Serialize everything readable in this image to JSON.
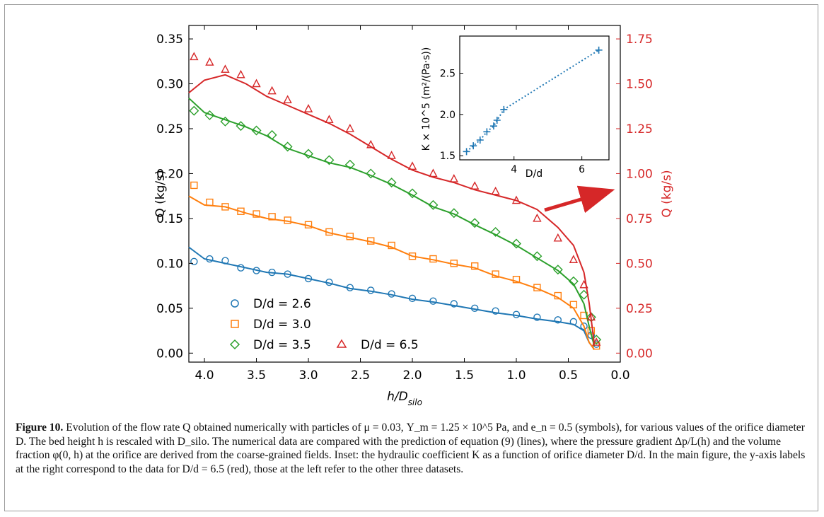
{
  "figure": {
    "caption_label": "Figure 10.",
    "caption_text": "Evolution of the flow rate Q obtained numerically with particles of μ = 0.03, Y_m = 1.25 × 10^5 Pa, and e_n = 0.5 (symbols), for various values of the orifice diameter D. The bed height h is rescaled with D_silo. The numerical data are compared with the prediction of equation (9) (lines), where the pressure gradient Δp/L(h) and the volume fraction φ(0, h) at the orifice are derived from the coarse-grained fields. Inset: the hydraulic coefficient K as a function of orifice diameter D/d. In the main figure, the y-axis labels at the right correspond to the data for D/d = 6.5 (red), those at the left refer to the other three datasets."
  },
  "colors": {
    "blue": "#1f77b4",
    "orange": "#ff7f0e",
    "green": "#2ca02c",
    "red": "#d62728"
  },
  "chart_data": [
    {
      "type": "line",
      "xlabel": "h/D_silo",
      "ylabel": "Q (kg/s)",
      "ylabel_right": "Q (kg/s)",
      "x_inverted": true,
      "xlim": [
        4.15,
        0.0
      ],
      "ylim": [
        -0.01,
        0.365
      ],
      "ylim_right": [
        -0.05,
        1.825
      ],
      "x_ticks": [
        "4.0",
        "3.5",
        "3.0",
        "2.5",
        "2.0",
        "1.5",
        "1.0",
        "0.5",
        "0.0"
      ],
      "y_ticks_left": [
        "0.00",
        "0.05",
        "0.10",
        "0.15",
        "0.20",
        "0.25",
        "0.30",
        "0.35"
      ],
      "y_ticks_right": [
        "0.00",
        "0.25",
        "0.50",
        "0.75",
        "1.00",
        "1.25",
        "1.50",
        "1.75"
      ],
      "legend_placement": "lower-left",
      "series": [
        {
          "name": "D/d = 2.6",
          "color": "#1f77b4",
          "marker": "circle",
          "axis": "left",
          "symbols": [
            [
              4.1,
              0.102
            ],
            [
              3.95,
              0.105
            ],
            [
              3.8,
              0.103
            ],
            [
              3.65,
              0.095
            ],
            [
              3.5,
              0.092
            ],
            [
              3.35,
              0.09
            ],
            [
              3.2,
              0.088
            ],
            [
              3.0,
              0.083
            ],
            [
              2.8,
              0.079
            ],
            [
              2.6,
              0.073
            ],
            [
              2.4,
              0.07
            ],
            [
              2.2,
              0.066
            ],
            [
              2.0,
              0.061
            ],
            [
              1.8,
              0.058
            ],
            [
              1.6,
              0.055
            ],
            [
              1.4,
              0.05
            ],
            [
              1.2,
              0.047
            ],
            [
              1.0,
              0.043
            ],
            [
              0.8,
              0.04
            ],
            [
              0.6,
              0.037
            ],
            [
              0.45,
              0.035
            ],
            [
              0.35,
              0.03
            ],
            [
              0.28,
              0.02
            ],
            [
              0.23,
              0.01
            ]
          ],
          "line": [
            [
              4.15,
              0.118
            ],
            [
              4.0,
              0.105
            ],
            [
              3.8,
              0.1
            ],
            [
              3.6,
              0.095
            ],
            [
              3.4,
              0.09
            ],
            [
              3.2,
              0.088
            ],
            [
              3.0,
              0.083
            ],
            [
              2.8,
              0.078
            ],
            [
              2.6,
              0.072
            ],
            [
              2.4,
              0.069
            ],
            [
              2.2,
              0.065
            ],
            [
              2.0,
              0.06
            ],
            [
              1.8,
              0.057
            ],
            [
              1.6,
              0.053
            ],
            [
              1.4,
              0.049
            ],
            [
              1.2,
              0.045
            ],
            [
              1.0,
              0.042
            ],
            [
              0.8,
              0.038
            ],
            [
              0.6,
              0.035
            ],
            [
              0.45,
              0.032
            ],
            [
              0.35,
              0.025
            ],
            [
              0.3,
              0.012
            ],
            [
              0.25,
              0.004
            ]
          ]
        },
        {
          "name": "D/d = 3.0",
          "color": "#ff7f0e",
          "marker": "square",
          "axis": "left",
          "symbols": [
            [
              4.1,
              0.187
            ],
            [
              3.95,
              0.168
            ],
            [
              3.8,
              0.163
            ],
            [
              3.65,
              0.158
            ],
            [
              3.5,
              0.155
            ],
            [
              3.35,
              0.152
            ],
            [
              3.2,
              0.148
            ],
            [
              3.0,
              0.143
            ],
            [
              2.8,
              0.135
            ],
            [
              2.6,
              0.13
            ],
            [
              2.4,
              0.125
            ],
            [
              2.2,
              0.12
            ],
            [
              2.0,
              0.108
            ],
            [
              1.8,
              0.105
            ],
            [
              1.6,
              0.1
            ],
            [
              1.4,
              0.097
            ],
            [
              1.2,
              0.088
            ],
            [
              1.0,
              0.082
            ],
            [
              0.8,
              0.073
            ],
            [
              0.6,
              0.064
            ],
            [
              0.45,
              0.054
            ],
            [
              0.35,
              0.042
            ],
            [
              0.28,
              0.025
            ],
            [
              0.23,
              0.008
            ]
          ],
          "line": [
            [
              4.15,
              0.175
            ],
            [
              4.0,
              0.165
            ],
            [
              3.8,
              0.163
            ],
            [
              3.6,
              0.156
            ],
            [
              3.4,
              0.15
            ],
            [
              3.2,
              0.147
            ],
            [
              3.0,
              0.142
            ],
            [
              2.8,
              0.134
            ],
            [
              2.6,
              0.129
            ],
            [
              2.4,
              0.124
            ],
            [
              2.2,
              0.118
            ],
            [
              2.0,
              0.108
            ],
            [
              1.8,
              0.104
            ],
            [
              1.6,
              0.099
            ],
            [
              1.4,
              0.095
            ],
            [
              1.2,
              0.086
            ],
            [
              1.0,
              0.08
            ],
            [
              0.8,
              0.072
            ],
            [
              0.6,
              0.062
            ],
            [
              0.45,
              0.05
            ],
            [
              0.35,
              0.03
            ],
            [
              0.3,
              0.012
            ],
            [
              0.25,
              0.004
            ]
          ]
        },
        {
          "name": "D/d = 3.5",
          "color": "#2ca02c",
          "marker": "diamond",
          "axis": "left",
          "symbols": [
            [
              4.1,
              0.27
            ],
            [
              3.95,
              0.265
            ],
            [
              3.8,
              0.258
            ],
            [
              3.65,
              0.253
            ],
            [
              3.5,
              0.248
            ],
            [
              3.35,
              0.243
            ],
            [
              3.2,
              0.23
            ],
            [
              3.0,
              0.222
            ],
            [
              2.8,
              0.215
            ],
            [
              2.6,
              0.21
            ],
            [
              2.4,
              0.2
            ],
            [
              2.2,
              0.19
            ],
            [
              2.0,
              0.178
            ],
            [
              1.8,
              0.165
            ],
            [
              1.6,
              0.156
            ],
            [
              1.4,
              0.145
            ],
            [
              1.2,
              0.135
            ],
            [
              1.0,
              0.122
            ],
            [
              0.8,
              0.108
            ],
            [
              0.6,
              0.093
            ],
            [
              0.45,
              0.08
            ],
            [
              0.35,
              0.065
            ],
            [
              0.28,
              0.04
            ],
            [
              0.23,
              0.015
            ]
          ],
          "line": [
            [
              4.15,
              0.284
            ],
            [
              4.0,
              0.268
            ],
            [
              3.8,
              0.26
            ],
            [
              3.6,
              0.252
            ],
            [
              3.4,
              0.242
            ],
            [
              3.2,
              0.228
            ],
            [
              3.0,
              0.22
            ],
            [
              2.8,
              0.212
            ],
            [
              2.6,
              0.207
            ],
            [
              2.4,
              0.198
            ],
            [
              2.2,
              0.188
            ],
            [
              2.0,
              0.176
            ],
            [
              1.8,
              0.163
            ],
            [
              1.6,
              0.155
            ],
            [
              1.4,
              0.143
            ],
            [
              1.2,
              0.132
            ],
            [
              1.0,
              0.12
            ],
            [
              0.8,
              0.106
            ],
            [
              0.6,
              0.092
            ],
            [
              0.45,
              0.077
            ],
            [
              0.35,
              0.055
            ],
            [
              0.3,
              0.03
            ],
            [
              0.25,
              0.008
            ]
          ]
        },
        {
          "name": "D/d = 6.5",
          "color": "#d62728",
          "marker": "triangle",
          "axis": "right",
          "symbols": [
            [
              4.1,
              1.65
            ],
            [
              3.95,
              1.62
            ],
            [
              3.8,
              1.58
            ],
            [
              3.65,
              1.55
            ],
            [
              3.5,
              1.5
            ],
            [
              3.35,
              1.46
            ],
            [
              3.2,
              1.41
            ],
            [
              3.0,
              1.36
            ],
            [
              2.8,
              1.3
            ],
            [
              2.6,
              1.25
            ],
            [
              2.4,
              1.16
            ],
            [
              2.2,
              1.1
            ],
            [
              2.0,
              1.04
            ],
            [
              1.8,
              1.0
            ],
            [
              1.6,
              0.97
            ],
            [
              1.4,
              0.93
            ],
            [
              1.2,
              0.9
            ],
            [
              1.0,
              0.85
            ],
            [
              0.8,
              0.75
            ],
            [
              0.6,
              0.64
            ],
            [
              0.45,
              0.52
            ],
            [
              0.35,
              0.38
            ],
            [
              0.28,
              0.2
            ],
            [
              0.23,
              0.06
            ]
          ],
          "line": [
            [
              4.15,
              1.45
            ],
            [
              4.0,
              1.52
            ],
            [
              3.8,
              1.55
            ],
            [
              3.6,
              1.5
            ],
            [
              3.4,
              1.43
            ],
            [
              3.2,
              1.38
            ],
            [
              3.0,
              1.33
            ],
            [
              2.8,
              1.28
            ],
            [
              2.6,
              1.22
            ],
            [
              2.4,
              1.15
            ],
            [
              2.2,
              1.08
            ],
            [
              2.0,
              1.02
            ],
            [
              1.8,
              0.98
            ],
            [
              1.6,
              0.95
            ],
            [
              1.4,
              0.91
            ],
            [
              1.2,
              0.88
            ],
            [
              1.0,
              0.85
            ],
            [
              0.8,
              0.8
            ],
            [
              0.6,
              0.7
            ],
            [
              0.45,
              0.6
            ],
            [
              0.35,
              0.45
            ],
            [
              0.3,
              0.28
            ],
            [
              0.25,
              0.05
            ]
          ]
        }
      ]
    },
    {
      "type": "scatter",
      "xlabel": "D/d",
      "ylabel": "K × 10^5 (m²/(Pa·s))",
      "xlim": [
        2.4,
        6.8
      ],
      "ylim": [
        1.45,
        2.95
      ],
      "x_ticks": [
        "4",
        "6"
      ],
      "y_ticks": [
        "1.5",
        "2.0",
        "2.5"
      ],
      "marker": "plus",
      "line_style": "dotted",
      "color": "#1f77b4",
      "points": [
        [
          2.6,
          1.55
        ],
        [
          2.8,
          1.62
        ],
        [
          3.0,
          1.69
        ],
        [
          3.2,
          1.79
        ],
        [
          3.4,
          1.86
        ],
        [
          3.5,
          1.93
        ],
        [
          3.7,
          2.06
        ],
        [
          6.5,
          2.78
        ]
      ]
    }
  ]
}
